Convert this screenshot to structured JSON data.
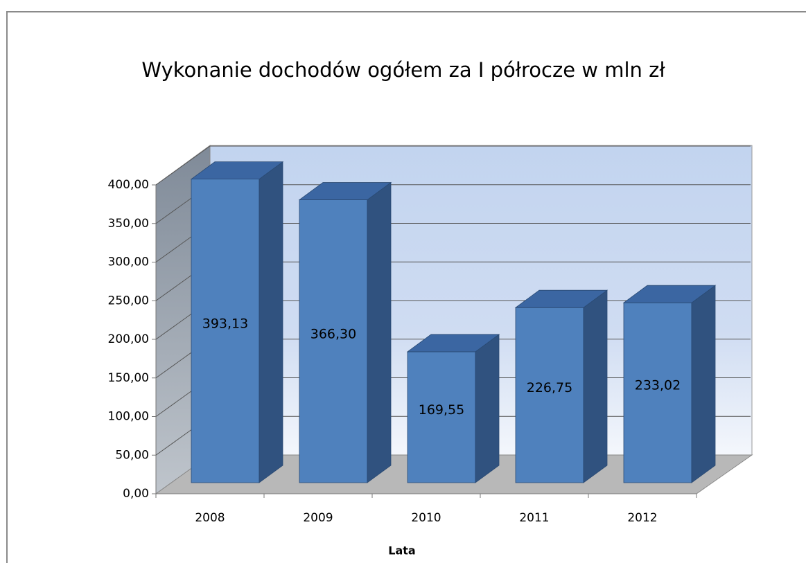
{
  "chart_data": {
    "type": "bar3d",
    "title": "Wykonanie dochodów ogółem za I półrocze w mln zł",
    "x_label": "Lata",
    "categories": [
      "2008",
      "2009",
      "2010",
      "2011",
      "2012"
    ],
    "values": [
      393.13,
      366.3,
      169.55,
      226.75,
      233.02
    ],
    "value_labels": [
      "393,13",
      "366,30",
      "169,55",
      "226,75",
      "233,02"
    ],
    "color": "#4f81bd",
    "ylim": [
      0,
      400
    ],
    "yticks": [
      {
        "value": 0,
        "label": "0,00"
      },
      {
        "value": 50,
        "label": "50,00"
      },
      {
        "value": 100,
        "label": "100,00"
      },
      {
        "value": 150,
        "label": "150,00"
      },
      {
        "value": 200,
        "label": "200,00"
      },
      {
        "value": 250,
        "label": "250,00"
      },
      {
        "value": 300,
        "label": "300,00"
      },
      {
        "value": 350,
        "label": "350,00"
      },
      {
        "value": 400,
        "label": "400,00"
      }
    ],
    "grid": true
  }
}
